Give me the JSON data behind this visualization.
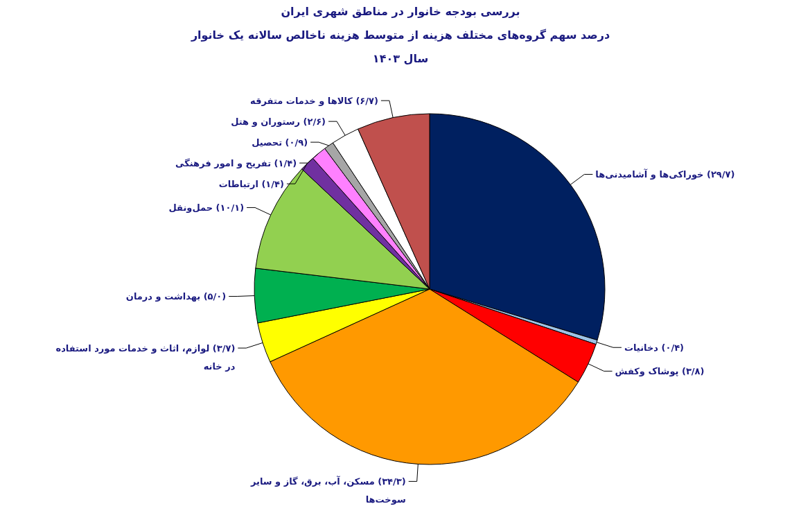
{
  "chart_data": {
    "type": "pie",
    "title": "بررسی بودجه خانوار در مناطق شهری ایران",
    "subtitle": "درصد سهم گروه‌های مختلف هزینه از متوسط هزینه ناخالص سالانه یک خانوار\nسال ۱۴۰۳",
    "categories": [
      "خوراکی‌ها و آشامیدنی‌ها",
      "دخانیات",
      "پوشاک وکفش",
      "مسکن، آب، برق، گاز و سایر سوخت‌ها",
      "لوازم، اثاث و خدمات مورد استفاده در خانه",
      "بهداشت و درمان",
      "حمل‌ونقل",
      "ارتباطات",
      "تفریح و امور فرهنگی",
      "تحصیل",
      "رستوران و هتل",
      "کالاها و خدمات متفرقه"
    ],
    "values": [
      29.7,
      0.4,
      3.8,
      34.3,
      3.7,
      5.0,
      10.1,
      1.4,
      1.4,
      0.9,
      2.6,
      6.7
    ],
    "colors": [
      "#002060",
      "#9dc3e6",
      "#ff0000",
      "#ff9900",
      "#ffff00",
      "#00b050",
      "#92d050",
      "#7030a0",
      "#ff80ff",
      "#a6a6a6",
      "#ffffff",
      "#c0504d"
    ],
    "value_labels": [
      "(۲۹/۷)",
      "(۰/۴)",
      "(۳/۸)",
      "(۳۴/۳)",
      "(۳/۷)",
      "(۵/۰)",
      "(۱۰/۱)",
      "(۱/۴)",
      "(۱/۴)",
      "(۰/۹)",
      "(۲/۶)",
      "(۶/۷)"
    ]
  }
}
